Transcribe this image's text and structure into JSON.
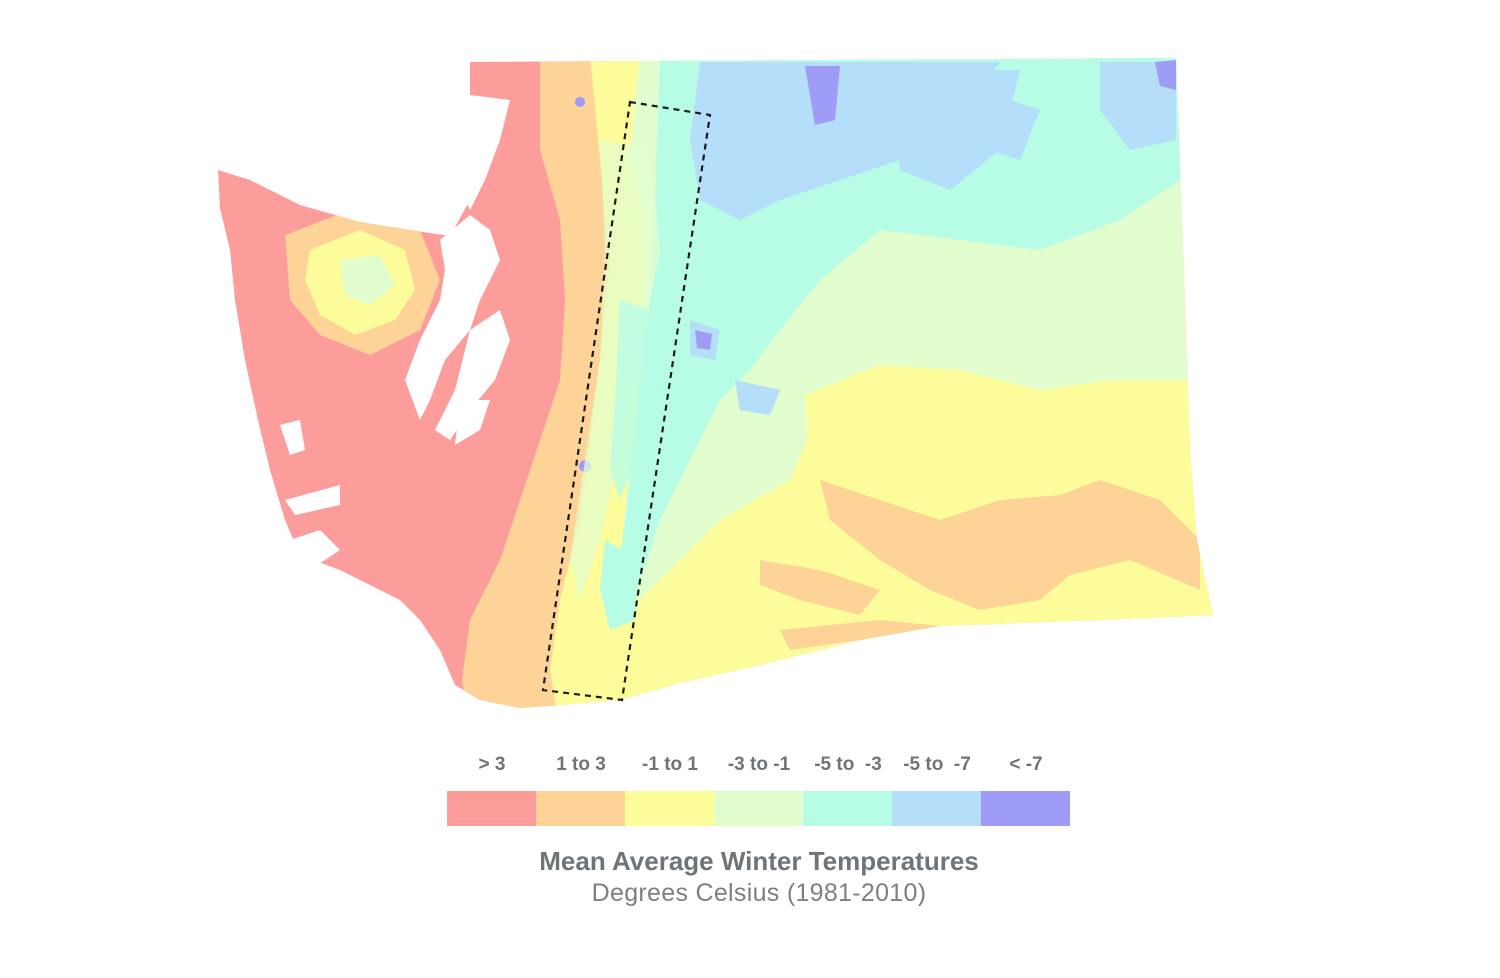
{
  "legend": {
    "items": [
      {
        "label": "> 3",
        "color": "#fc9c9b"
      },
      {
        "label": "1 to 3",
        "color": "#fdd398"
      },
      {
        "label": "-1 to 1",
        "color": "#fdfc9b"
      },
      {
        "label": "-3 to -1",
        "color": "#e2fdcd"
      },
      {
        "label": "-5 to  -3",
        "color": "#b7fde5"
      },
      {
        "label": "-5 to  -7",
        "color": "#b4def9"
      },
      {
        "label": "< -7",
        "color": "#9e9cf7"
      }
    ]
  },
  "caption": {
    "title": "Mean Average Winter Temperatures",
    "subtitle": "Degrees Celsius (1981-2010)"
  },
  "colors": {
    "water": "#ffffff",
    "highlight_box_stroke": "#1a1a1a",
    "text": "#6f7478"
  }
}
